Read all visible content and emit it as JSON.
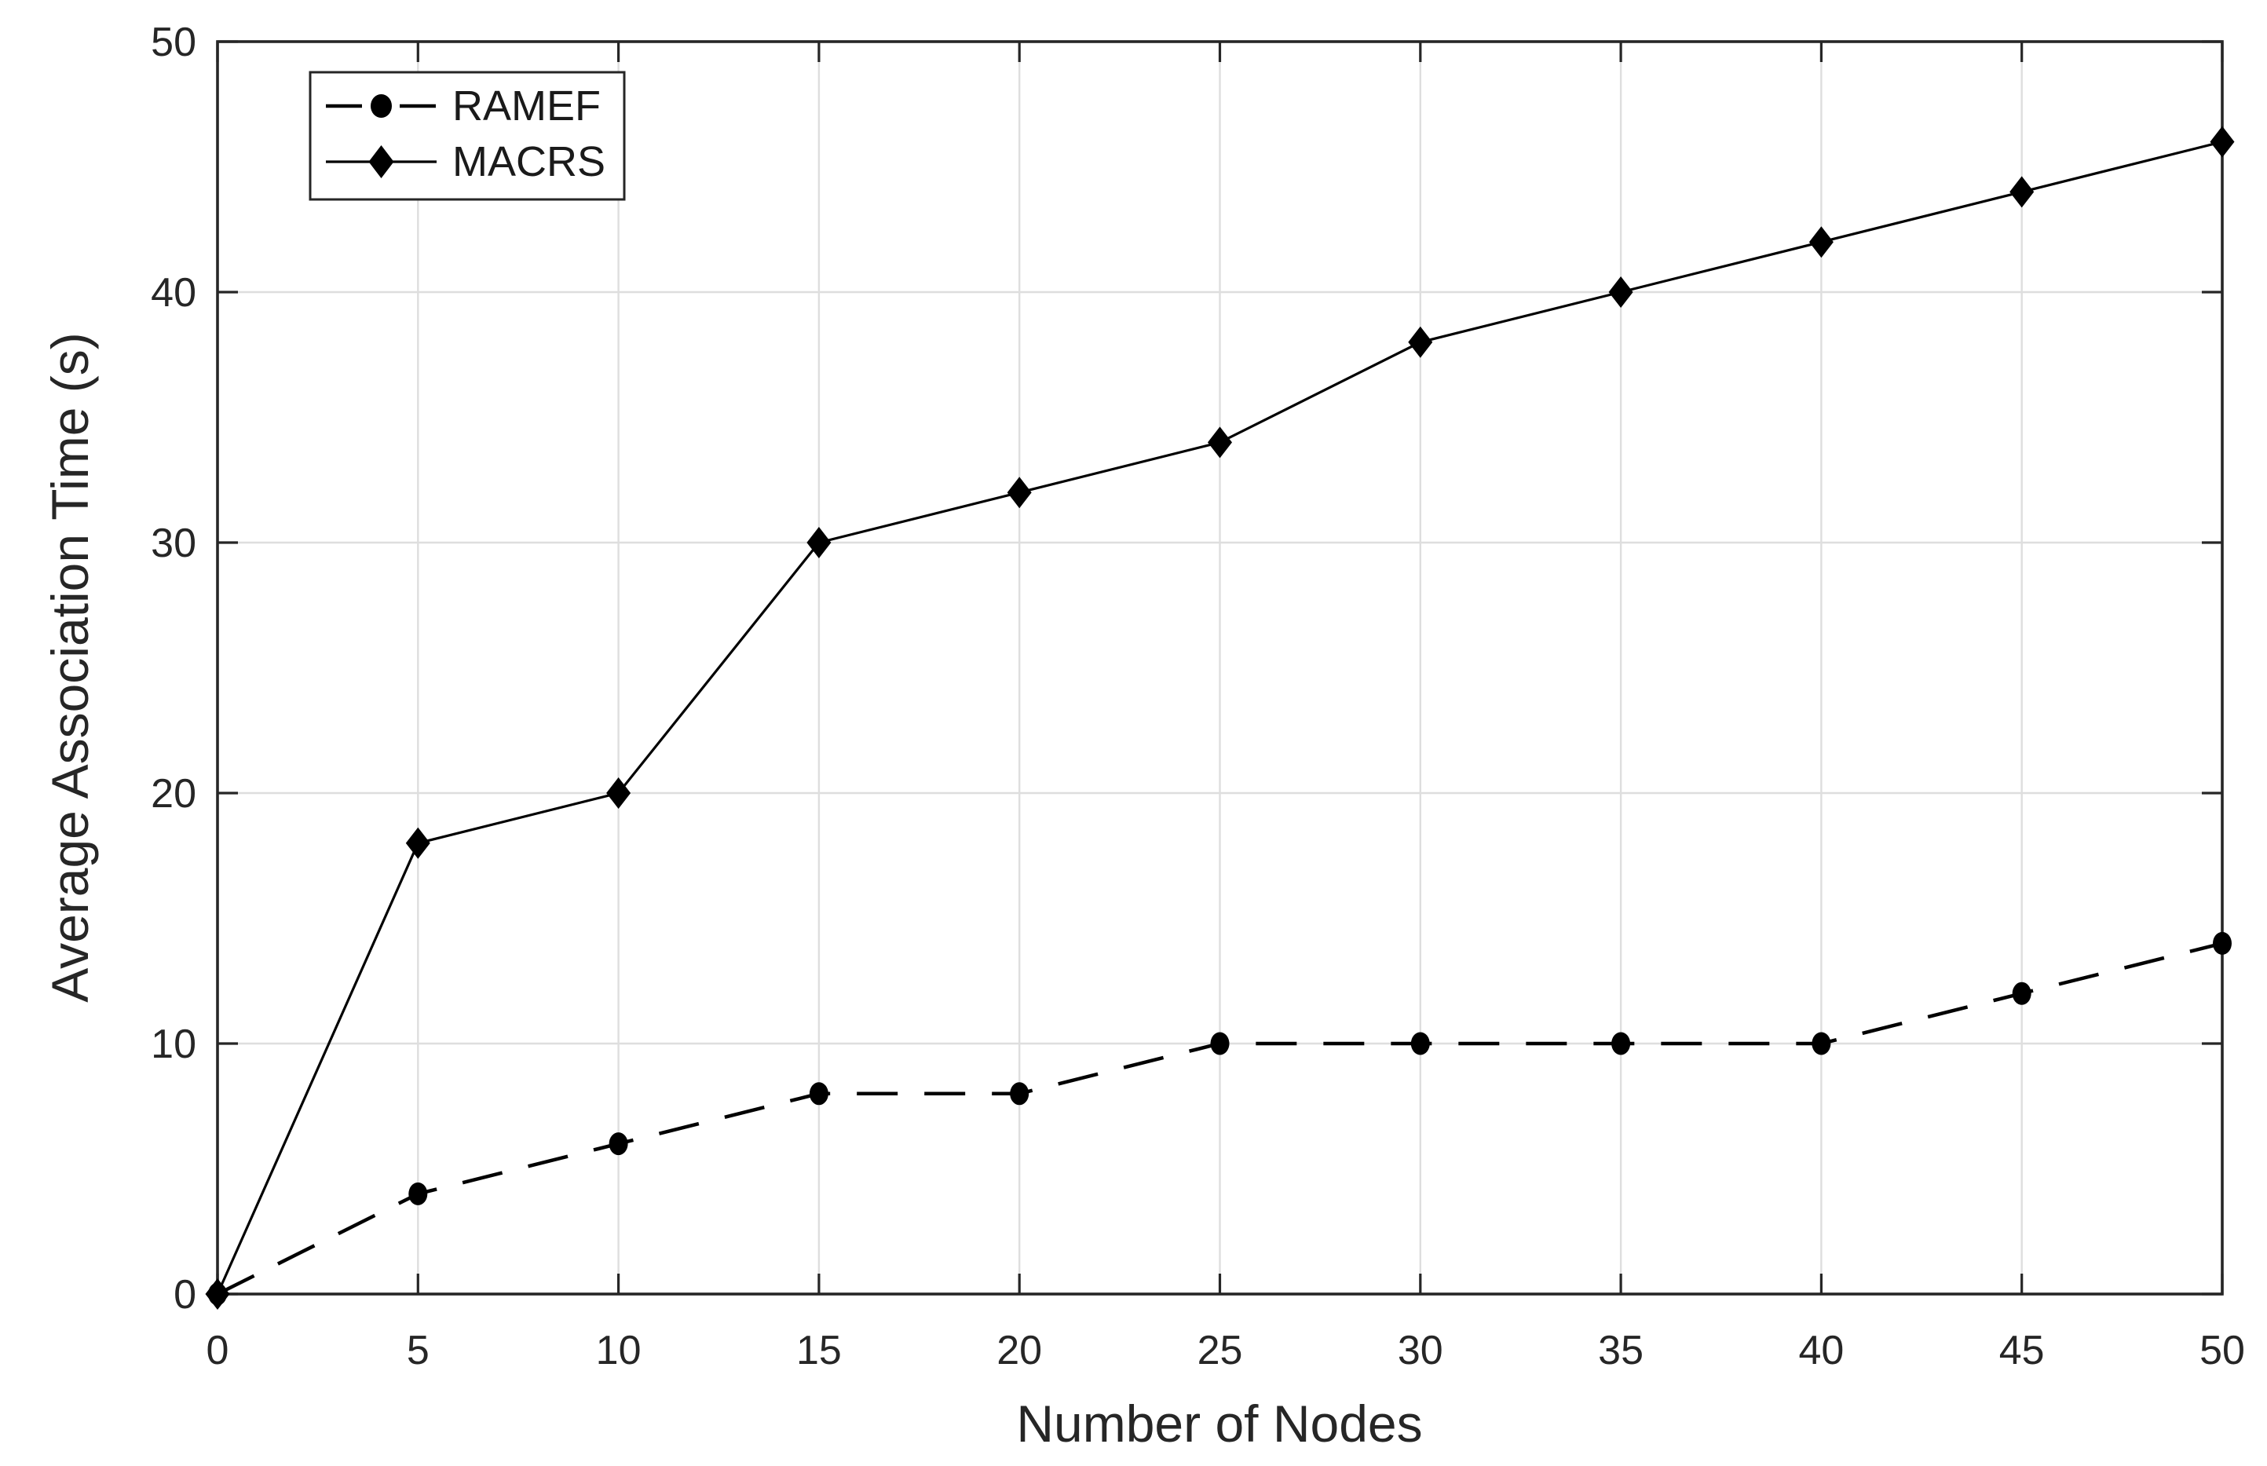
{
  "figure": {
    "background": "#ffffff"
  },
  "chart_data": {
    "type": "line",
    "title": "",
    "xlabel": "Number of Nodes",
    "ylabel": "Average Association Time (s)",
    "xlim": [
      0,
      50
    ],
    "ylim": [
      0,
      50
    ],
    "xticks": [
      0,
      5,
      10,
      15,
      20,
      25,
      30,
      35,
      40,
      45,
      50
    ],
    "yticks": [
      0,
      10,
      20,
      30,
      40,
      50
    ],
    "grid": true,
    "legend_position": "top-left",
    "x": [
      0,
      5,
      10,
      15,
      20,
      25,
      30,
      35,
      40,
      45,
      50
    ],
    "series": [
      {
        "name": "RAMEF",
        "values": [
          0,
          4,
          6,
          8,
          8,
          10,
          10,
          10,
          10,
          12,
          14
        ],
        "line_style": "dashed",
        "marker": "circle",
        "color": "#000000"
      },
      {
        "name": "MACRS",
        "values": [
          0,
          18,
          20,
          30,
          32,
          34,
          38,
          40,
          42,
          44,
          46
        ],
        "line_style": "solid",
        "marker": "diamond",
        "color": "#000000"
      }
    ]
  },
  "style": {
    "axis_color": "#262626",
    "tick_label_color": "#262626",
    "grid_color": "#dedede",
    "series_color": "#000000",
    "legend_border_color": "#262626",
    "legend_background": "#ffffff",
    "legend_text_color": "#1a1a1a"
  }
}
